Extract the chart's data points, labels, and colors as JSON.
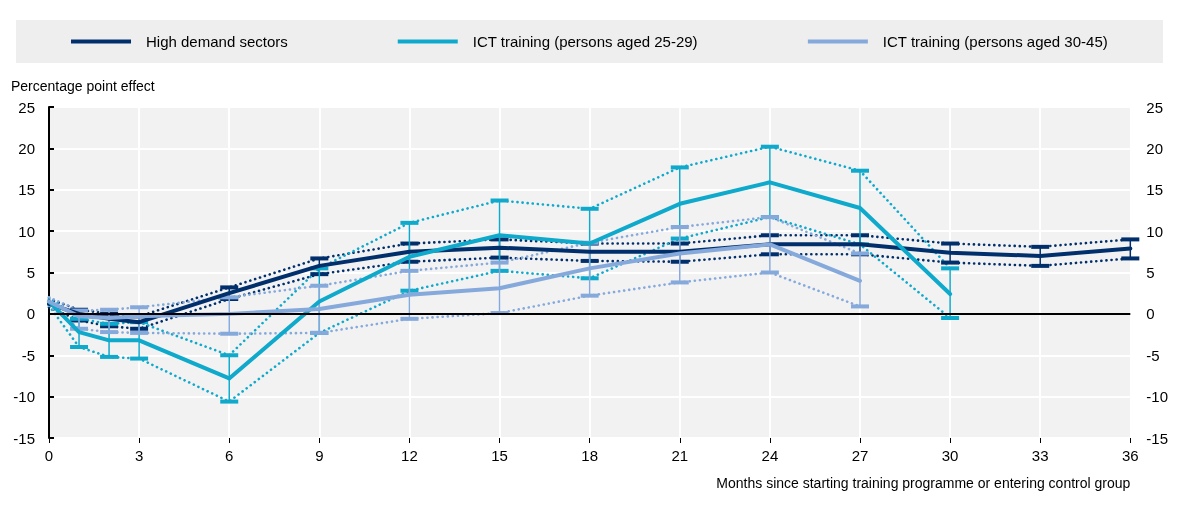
{
  "chart_data": {
    "type": "line",
    "xlabel": "Months since starting training programme or entering control group",
    "ylabel": "Percentage point effect",
    "xlim": [
      0,
      36
    ],
    "xticks": [
      0,
      3,
      6,
      9,
      12,
      15,
      18,
      21,
      24,
      27,
      30,
      33,
      36
    ],
    "ylim": [
      -15,
      25
    ],
    "yticks": [
      -15,
      -10,
      -5,
      0,
      5,
      10,
      15,
      20,
      25
    ],
    "y2lim": [
      -15,
      25
    ],
    "y2ticks": [
      -15,
      -10,
      -5,
      0,
      5,
      10,
      15,
      20,
      25
    ],
    "grid": true,
    "legend": "top",
    "marker": "none",
    "line_style": "solid",
    "ref_lines": [
      {
        "axis": "y",
        "value": 0,
        "color": "#000000"
      }
    ],
    "series": [
      {
        "name": "High demand sectors",
        "color": "#002f6c",
        "x": [
          0,
          1,
          2,
          3,
          6,
          9,
          12,
          15,
          18,
          21,
          24,
          27,
          30,
          33,
          36
        ],
        "values": [
          1.2,
          0,
          -0.6,
          -1,
          2.5,
          5.8,
          7.5,
          8,
          7.5,
          7.5,
          8.4,
          8.4,
          7.4,
          7,
          7.9
        ],
        "errors": [
          null,
          [
            -0.8,
            0.5
          ],
          [
            -1.5,
            0
          ],
          [
            -1.8,
            -0.3
          ],
          [
            1.8,
            3.2
          ],
          [
            4.8,
            6.7
          ],
          [
            6.3,
            8.5
          ],
          [
            6.8,
            9
          ],
          [
            6.4,
            8.5
          ],
          [
            6.3,
            8.5
          ],
          [
            7.2,
            9.5
          ],
          [
            7.2,
            9.5
          ],
          [
            6.2,
            8.5
          ],
          [
            5.8,
            8.1
          ],
          [
            6.7,
            9
          ]
        ]
      },
      {
        "name": "ICT training (persons aged 25-29)",
        "color": "#0ea9cb",
        "x": [
          0,
          1,
          2,
          3,
          6,
          9,
          12,
          15,
          18,
          21,
          24,
          27,
          30
        ],
        "values": [
          1.5,
          -2.2,
          -3.2,
          -3.2,
          -7.8,
          1.5,
          6.9,
          9.5,
          8.5,
          13.3,
          15.9,
          12.8,
          2.4
        ],
        "errors": [
          null,
          [
            -4,
            -0.6
          ],
          [
            -5.2,
            -1.2
          ],
          [
            -5.4,
            -1
          ],
          [
            -10.6,
            -5
          ],
          [
            -2.3,
            5.5
          ],
          [
            2.8,
            11
          ],
          [
            5.2,
            13.7
          ],
          [
            4.3,
            12.7
          ],
          [
            9.1,
            17.7
          ],
          [
            11.7,
            20.2
          ],
          [
            8.4,
            17.3
          ],
          [
            -0.5,
            5.5
          ]
        ]
      },
      {
        "name": "ICT training (persons aged 30-45)",
        "color": "#86a9dc",
        "x": [
          0,
          1,
          2,
          3,
          6,
          9,
          12,
          15,
          18,
          21,
          24,
          27
        ],
        "values": [
          1.5,
          -0.3,
          -0.5,
          -0.3,
          0,
          0.6,
          2.3,
          3.1,
          5.5,
          7.3,
          8.4,
          4
        ],
        "errors": [
          null,
          [
            -1.8,
            0.4
          ],
          [
            -2.2,
            0.5
          ],
          [
            -2.3,
            0.8
          ],
          [
            -2.4,
            2
          ],
          [
            -2.3,
            3.4
          ],
          [
            -0.6,
            5.2
          ],
          [
            0.1,
            6.2
          ],
          [
            2.2,
            8.6
          ],
          [
            3.8,
            10.5
          ],
          [
            5,
            11.7
          ],
          [
            0.9,
            7.3
          ]
        ]
      },
      {
        "color": "#002f6c",
        "line_style": "dotted",
        "x": [
          0,
          1,
          2,
          3,
          6,
          9,
          12,
          15,
          18,
          21,
          24,
          27,
          30,
          33,
          36
        ],
        "values": [
          0.8,
          -0.8,
          -1.5,
          -1.8,
          1.8,
          4.8,
          6.3,
          6.8,
          6.4,
          6.3,
          7.2,
          7.2,
          6.2,
          5.8,
          6.7
        ]
      },
      {
        "color": "#002f6c",
        "line_style": "dotted",
        "x": [
          0,
          1,
          2,
          3,
          6,
          9,
          12,
          15,
          18,
          21,
          24,
          27,
          30,
          33,
          36
        ],
        "values": [
          1.8,
          0.5,
          0,
          -0.3,
          3.2,
          6.7,
          8.5,
          9,
          8.5,
          8.5,
          9.5,
          9.5,
          8.5,
          8.1,
          9
        ]
      },
      {
        "color": "#0ea9cb",
        "line_style": "dotted",
        "x": [
          0,
          1,
          2,
          3,
          6,
          9,
          12,
          15,
          18,
          21,
          24,
          27,
          30
        ],
        "values": [
          1,
          -4,
          -5.2,
          -5.4,
          -10.6,
          -2.3,
          2.8,
          5.2,
          4.3,
          9.1,
          11.7,
          8.4,
          -0.5
        ]
      },
      {
        "color": "#0ea9cb",
        "line_style": "dotted",
        "x": [
          0,
          1,
          2,
          3,
          6,
          9,
          12,
          15,
          18,
          21,
          24,
          27,
          30
        ],
        "values": [
          2,
          -0.6,
          -1.2,
          -1,
          -5,
          5.5,
          11,
          13.7,
          12.7,
          17.7,
          20.2,
          17.3,
          5.5
        ]
      },
      {
        "color": "#86a9dc",
        "line_style": "dotted",
        "x": [
          0,
          1,
          2,
          3,
          6,
          9,
          12,
          15,
          18,
          21,
          24,
          27
        ],
        "values": [
          1,
          -1.8,
          -2.2,
          -2.3,
          -2.4,
          -2.3,
          -0.6,
          0.1,
          2.2,
          3.8,
          5,
          0.9
        ]
      },
      {
        "color": "#86a9dc",
        "line_style": "dotted",
        "x": [
          0,
          1,
          2,
          3,
          6,
          9,
          12,
          15,
          18,
          21,
          24,
          27
        ],
        "values": [
          2,
          0.4,
          0.5,
          0.8,
          2,
          3.4,
          5.2,
          6.2,
          8.6,
          10.5,
          11.7,
          7.3
        ]
      }
    ]
  }
}
